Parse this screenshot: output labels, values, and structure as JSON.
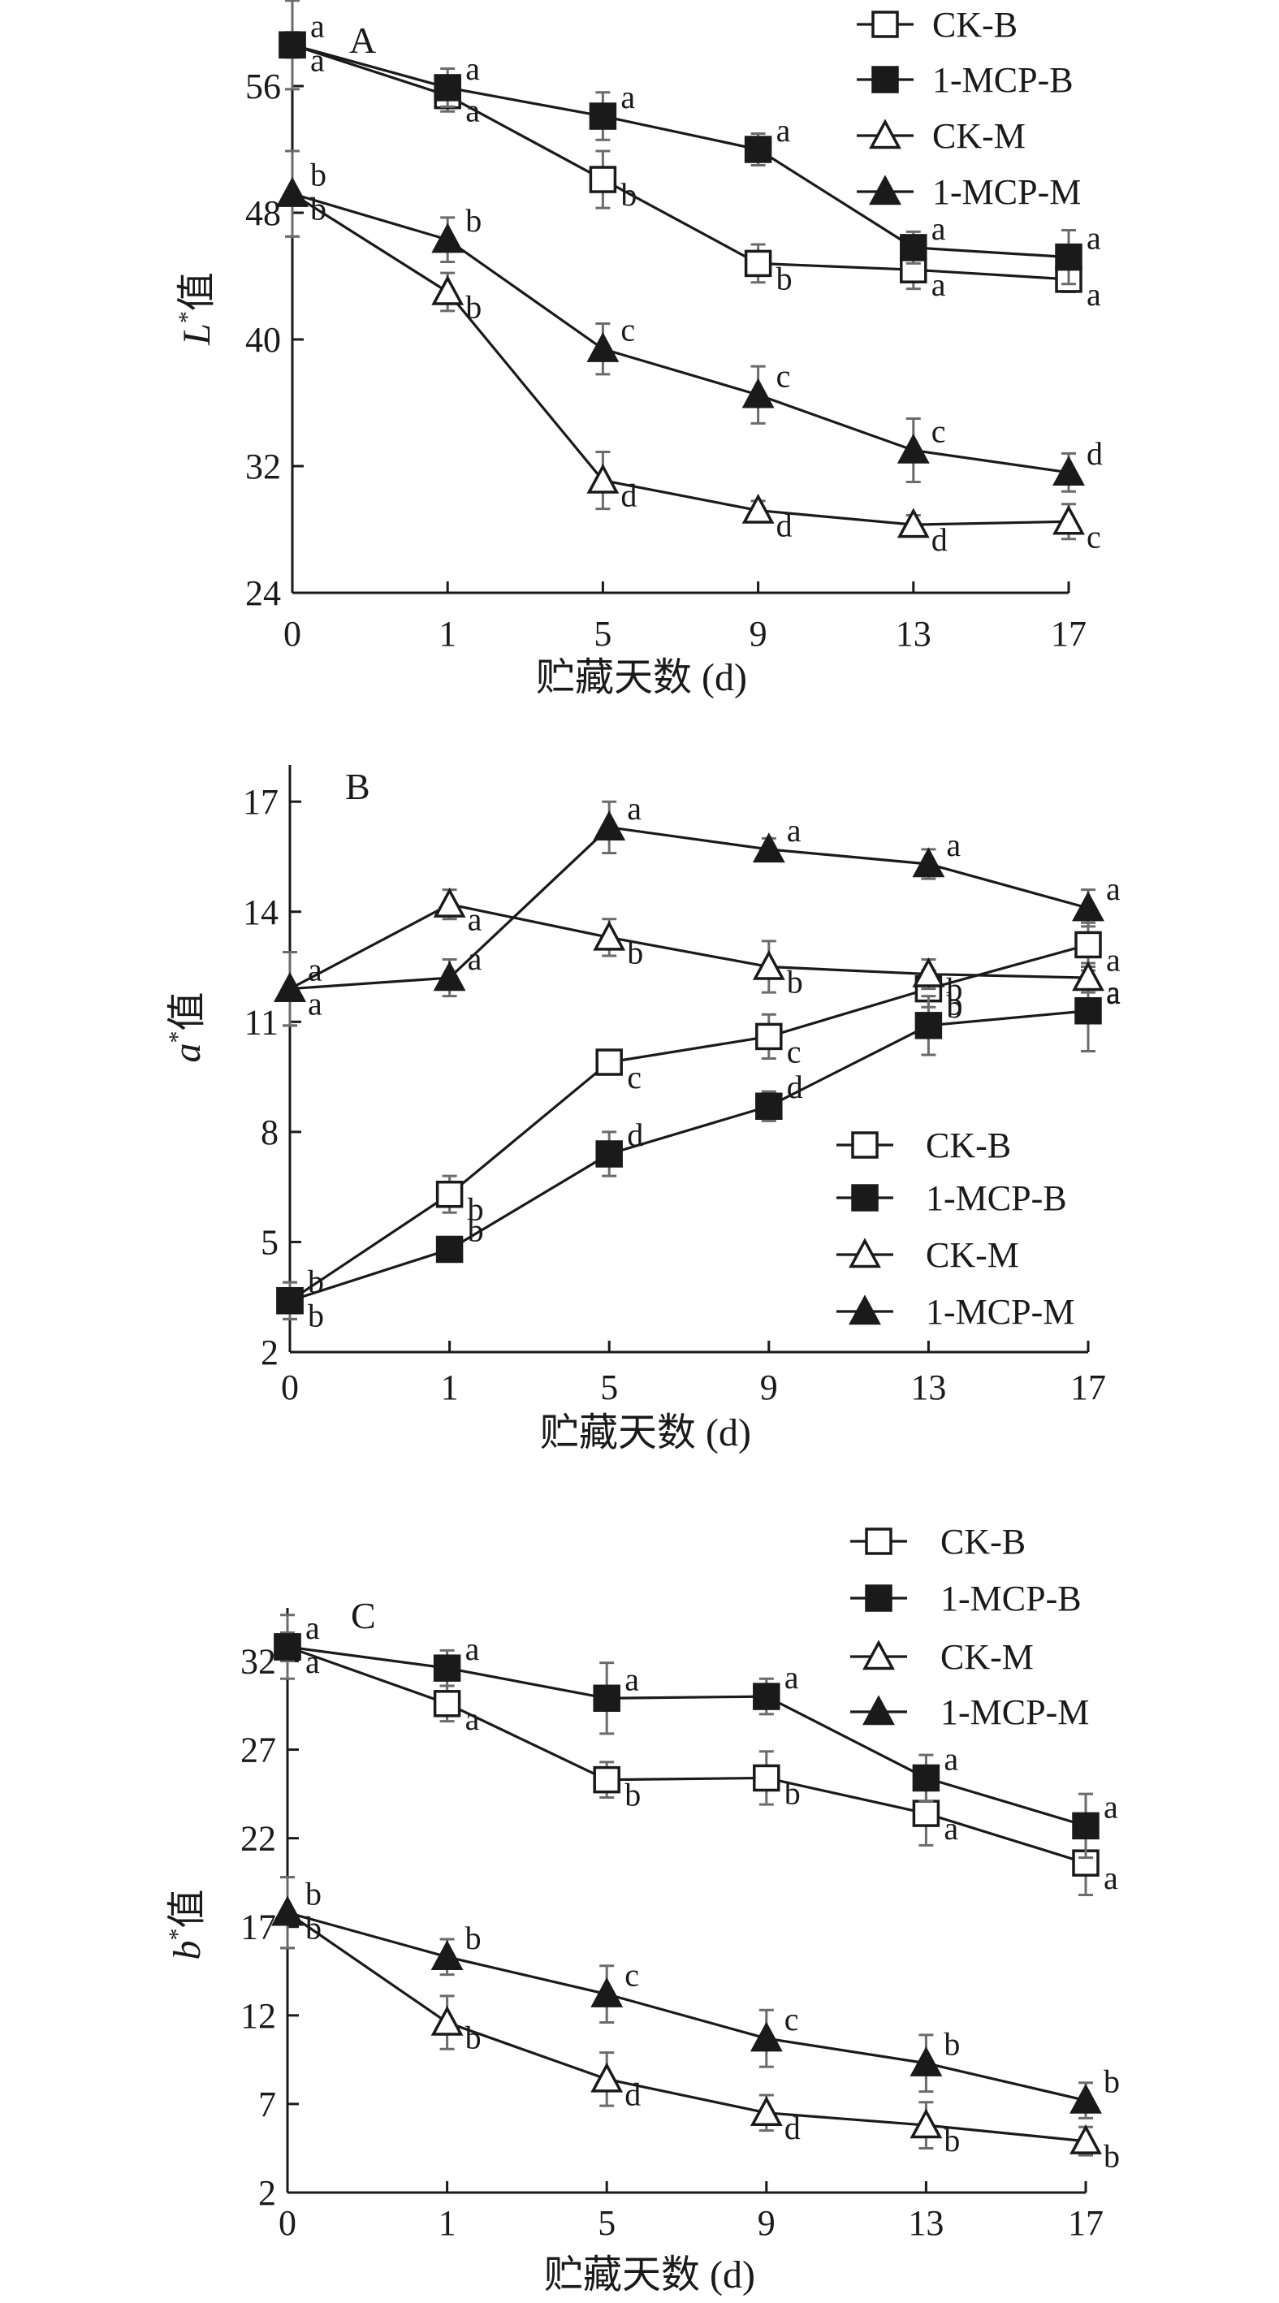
{
  "figure": {
    "marker_color": "#1a1a1a",
    "errorbar_color": "#6b6b6b"
  },
  "chart_data": [
    {
      "type": "line",
      "panel": "A",
      "title": "",
      "xlabel": "贮藏天数 (d)",
      "ylabel": "L*值",
      "ylabel_main": "L",
      "ylabel_sup": "*",
      "ylabel_suffix": "值",
      "categories": [
        "0",
        "1",
        "5",
        "9",
        "13",
        "17"
      ],
      "ylim": [
        24,
        60
      ],
      "yticks": [
        24,
        32,
        40,
        48,
        56
      ],
      "legend_position": "top-right",
      "series": [
        {
          "name": "CK-B",
          "marker": "open-square",
          "values": [
            58.6,
            55.4,
            50.1,
            44.8,
            44.4,
            43.8
          ],
          "errors": [
            0.8,
            1.0,
            1.8,
            1.2,
            1.2,
            0.8
          ],
          "letters": [
            "a",
            "a",
            "b",
            "b",
            "a",
            "a"
          ]
        },
        {
          "name": "1-MCP-B",
          "marker": "filled-square",
          "values": [
            58.6,
            55.9,
            54.1,
            52.0,
            45.8,
            45.2
          ],
          "errors": [
            2.8,
            1.2,
            1.5,
            1.0,
            1.0,
            1.7
          ],
          "letters": [
            "a",
            "a",
            "a",
            "a",
            "a",
            "a"
          ]
        },
        {
          "name": "CK-M",
          "marker": "open-triangle",
          "values": [
            49.2,
            43.0,
            31.1,
            29.2,
            28.3,
            28.5
          ],
          "errors": [
            2.7,
            1.2,
            1.8,
            0.6,
            0.6,
            1.1
          ],
          "letters": [
            "b",
            "b",
            "d",
            "d",
            "d",
            "c"
          ]
        },
        {
          "name": "1-MCP-M",
          "marker": "filled-triangle",
          "values": [
            49.2,
            46.3,
            39.4,
            36.5,
            33.0,
            31.6
          ],
          "errors": [
            2.7,
            1.4,
            1.6,
            1.8,
            2.0,
            1.2
          ],
          "letters": [
            "b",
            "b",
            "c",
            "c",
            "c",
            "d"
          ]
        }
      ]
    },
    {
      "type": "line",
      "panel": "B",
      "title": "",
      "xlabel": "贮藏天数 (d)",
      "ylabel": "a*值",
      "ylabel_main": "a",
      "ylabel_sup": "*",
      "ylabel_suffix": "值",
      "categories": [
        "0",
        "1",
        "5",
        "9",
        "13",
        "17"
      ],
      "ylim": [
        2,
        18
      ],
      "yticks": [
        2,
        5,
        8,
        11,
        14,
        17
      ],
      "legend_position": "center-right",
      "series": [
        {
          "name": "CK-B",
          "marker": "open-square",
          "values": [
            3.4,
            6.3,
            9.9,
            10.6,
            11.9,
            13.1
          ],
          "errors": [
            0.5,
            0.5,
            0.2,
            0.6,
            0.5,
            0.6
          ],
          "letters": [
            "b",
            "b",
            "c",
            "c",
            "b",
            "a"
          ]
        },
        {
          "name": "1-MCP-B",
          "marker": "filled-square",
          "values": [
            3.4,
            4.8,
            7.4,
            8.7,
            10.9,
            11.3
          ],
          "errors": [
            0.5,
            0.3,
            0.6,
            0.4,
            0.8,
            1.1
          ],
          "letters": [
            "b",
            "b",
            "d",
            "d",
            "b",
            "a"
          ]
        },
        {
          "name": "CK-M",
          "marker": "open-triangle",
          "values": [
            11.9,
            14.2,
            13.3,
            12.5,
            12.3,
            12.2
          ],
          "errors": [
            1.0,
            0.4,
            0.5,
            0.7,
            0.4,
            0.4
          ],
          "letters": [
            "a",
            "a",
            "b",
            "b",
            "b",
            "a"
          ]
        },
        {
          "name": "1-MCP-M",
          "marker": "filled-triangle",
          "values": [
            11.9,
            12.2,
            16.3,
            15.7,
            15.3,
            14.1
          ],
          "errors": [
            1.0,
            0.5,
            0.7,
            0.3,
            0.4,
            0.5
          ],
          "letters": [
            "a",
            "a",
            "a",
            "a",
            "a",
            "a"
          ]
        }
      ]
    },
    {
      "type": "line",
      "panel": "C",
      "title": "",
      "xlabel": "贮藏天数 (d)",
      "ylabel": "b*值",
      "ylabel_main": "b",
      "ylabel_sup": "*",
      "ylabel_suffix": "值",
      "categories": [
        "0",
        "1",
        "5",
        "9",
        "13",
        "17"
      ],
      "ylim": [
        2,
        35
      ],
      "yticks": [
        2,
        7,
        12,
        17,
        22,
        27,
        32
      ],
      "legend_position": "top-right",
      "series": [
        {
          "name": "CK-B",
          "marker": "open-square",
          "values": [
            32.8,
            29.6,
            25.3,
            25.4,
            23.4,
            20.6
          ],
          "errors": [
            0.8,
            1.0,
            1.0,
            1.5,
            1.8,
            1.8
          ],
          "letters": [
            "a",
            "a",
            "b",
            "b",
            "a",
            "a"
          ]
        },
        {
          "name": "1-MCP-B",
          "marker": "filled-square",
          "values": [
            32.8,
            31.6,
            29.9,
            30.0,
            25.4,
            22.7
          ],
          "errors": [
            1.8,
            1.0,
            2.0,
            1.0,
            1.3,
            1.8
          ],
          "letters": [
            "a",
            "a",
            "a",
            "a",
            "a",
            "a"
          ]
        },
        {
          "name": "CK-M",
          "marker": "open-triangle",
          "values": [
            17.8,
            11.6,
            8.4,
            6.5,
            5.8,
            4.9
          ],
          "errors": [
            2.0,
            1.5,
            1.5,
            1.0,
            1.3,
            0.8
          ],
          "letters": [
            "b",
            "b",
            "d",
            "d",
            "b",
            "b"
          ]
        },
        {
          "name": "1-MCP-M",
          "marker": "filled-triangle",
          "values": [
            17.8,
            15.3,
            13.2,
            10.7,
            9.3,
            7.2
          ],
          "errors": [
            2.0,
            1.0,
            1.6,
            1.6,
            1.6,
            1.0
          ],
          "letters": [
            "b",
            "b",
            "c",
            "c",
            "b",
            "b"
          ]
        }
      ]
    }
  ]
}
